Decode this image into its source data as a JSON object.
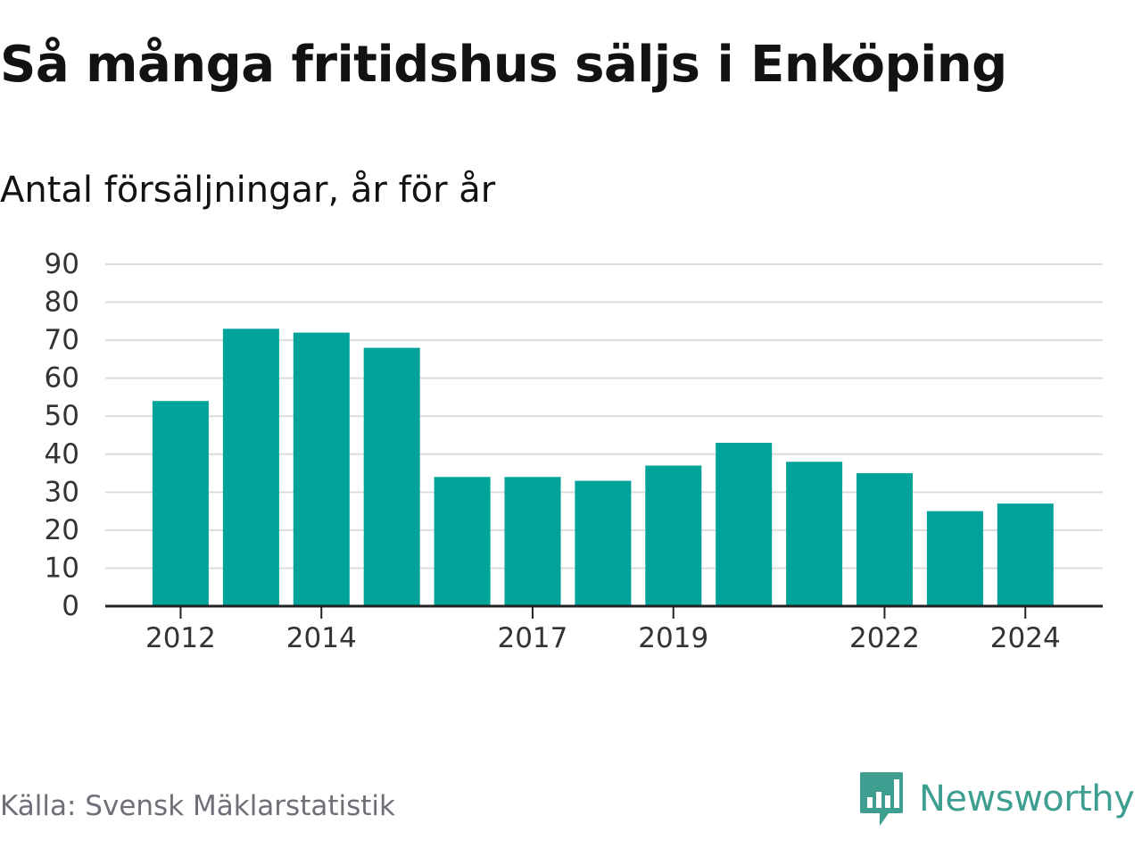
{
  "header": {
    "title": "Så många fritidshus säljs i Enköping",
    "subtitle": "Antal försäljningar, år för år"
  },
  "footer": {
    "source": "Källa: Svensk Mäklarstatistik",
    "brand": "Newsworthy"
  },
  "colors": {
    "bar": "#00a39a",
    "grid": "#dcdcdc",
    "axis": "#222222",
    "tick_text": "#333333",
    "brand": "#3e9e90"
  },
  "chart_data": {
    "type": "bar",
    "categories": [
      "2012",
      "2013",
      "2014",
      "2015",
      "2016",
      "2017",
      "2018",
      "2019",
      "2020",
      "2021",
      "2022",
      "2023",
      "2024"
    ],
    "values": [
      54,
      73,
      72,
      68,
      34,
      34,
      33,
      37,
      43,
      38,
      35,
      25,
      27
    ],
    "x_tick_labels": [
      "2012",
      "2014",
      "2017",
      "2019",
      "2022",
      "2024"
    ],
    "ylim": [
      0,
      90
    ],
    "y_ticks": [
      0,
      10,
      20,
      30,
      40,
      50,
      60,
      70,
      80,
      90
    ],
    "grid": true,
    "legend": false
  }
}
